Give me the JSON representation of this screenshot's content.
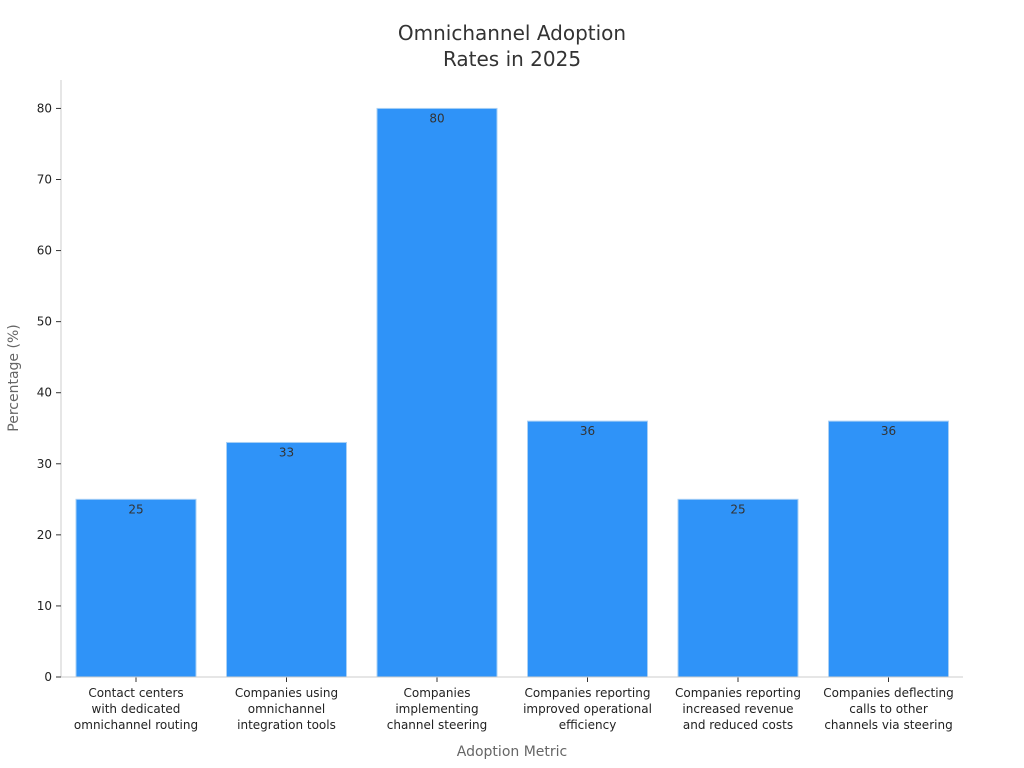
{
  "chart_data": {
    "type": "bar",
    "title": [
      "Omnichannel Adoption",
      "Rates in 2025"
    ],
    "xlabel": "Adoption Metric",
    "ylabel": "Percentage (%)",
    "ylim": [
      0,
      84
    ],
    "yticks": [
      0,
      10,
      20,
      30,
      40,
      50,
      60,
      70,
      80
    ],
    "grid": false,
    "categories": [
      [
        "Contact centers",
        "with dedicated",
        "omnichannel routing"
      ],
      [
        "Companies using",
        "omnichannel",
        "integration tools"
      ],
      [
        "Companies",
        "implementing",
        "channel steering"
      ],
      [
        "Companies reporting",
        "improved operational",
        "efficiency"
      ],
      [
        "Companies reporting",
        "increased revenue",
        "and reduced costs"
      ],
      [
        "Companies deflecting",
        "calls to other",
        "channels via steering"
      ]
    ],
    "values": [
      25,
      33,
      80,
      36,
      25,
      36
    ],
    "bar_color": "#2f93f8",
    "bar_edge_color": "#a9d0f5"
  }
}
